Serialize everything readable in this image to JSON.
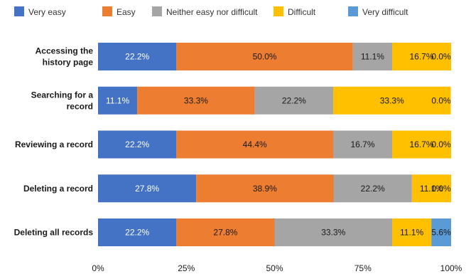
{
  "chart_data": {
    "type": "bar",
    "orientation": "horizontal",
    "stacked": "percent",
    "categories": [
      "Accessing the history page",
      "Searching for a record",
      "Reviewing a record",
      "Deleting a record",
      "Deleting all records"
    ],
    "category_lines": [
      [
        "Accessing the",
        "history page"
      ],
      [
        "Searching for a",
        "record"
      ],
      [
        "Reviewing a record"
      ],
      [
        "Deleting a record"
      ],
      [
        "Deleting all records"
      ]
    ],
    "series": [
      {
        "name": "Very easy",
        "color": "#4472c4",
        "label_color": "#ffffff",
        "values": [
          22.2,
          11.1,
          22.2,
          27.8,
          22.2
        ],
        "labels": [
          "22.2%",
          "11.1%",
          "22.2%",
          "27.8%",
          "22.2%"
        ]
      },
      {
        "name": "Easy",
        "color": "#ed7d31",
        "label_color": "#1a1a1a",
        "values": [
          50.0,
          33.3,
          44.4,
          38.9,
          27.8
        ],
        "labels": [
          "50.0%",
          "33.3%",
          "44.4%",
          "38.9%",
          "27.8%"
        ]
      },
      {
        "name": "Neither easy nor difficult",
        "color": "#a5a5a5",
        "label_color": "#1a1a1a",
        "values": [
          11.1,
          22.2,
          16.7,
          22.2,
          33.3
        ],
        "labels": [
          "11.1%",
          "22.2%",
          "16.7%",
          "22.2%",
          "33.3%"
        ]
      },
      {
        "name": "Difficult",
        "color": "#ffc000",
        "label_color": "#1a1a1a",
        "values": [
          16.7,
          33.3,
          16.7,
          11.1,
          11.1
        ],
        "labels": [
          "16.7%",
          "33.3%",
          "16.7%",
          "11.1%",
          "11.1%"
        ]
      },
      {
        "name": "Very difficult",
        "color": "#5b9bd5",
        "label_color": "#1a1a1a",
        "values": [
          0.0,
          0.0,
          0.0,
          0.0,
          5.6
        ],
        "labels": [
          "0.0%",
          "0.0%",
          "0.0%",
          "0.0%",
          "5.6%"
        ]
      }
    ],
    "x_ticks": [
      "0%",
      "25%",
      "50%",
      "75%",
      "100%"
    ],
    "xlim": [
      0,
      100
    ],
    "grid": false,
    "legend": "top"
  }
}
